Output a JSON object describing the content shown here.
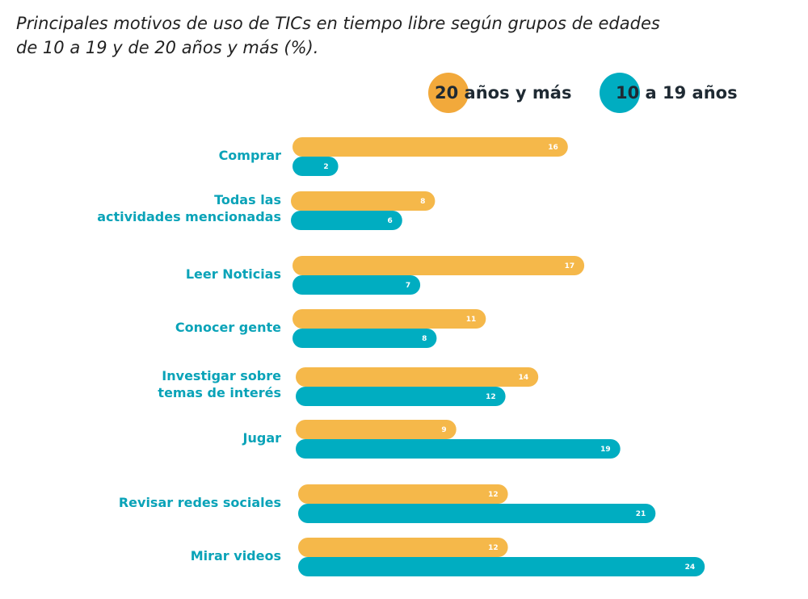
{
  "title": {
    "line1": "Principales motivos de uso de TICs en tiempo libre según grupos de edades",
    "line2": "de 10 a 19 y de 20 años y más (%)."
  },
  "legend": {
    "older": "20 años y más",
    "young": "10 a 19 años"
  },
  "colors": {
    "older": "#f5b84a",
    "young": "#00adc1"
  },
  "chart_data": {
    "type": "bar",
    "orientation": "horizontal",
    "title": "Principales motivos de uso de TICs en tiempo libre según grupos de edades de 10 a 19 y de 20 años y más (%).",
    "categories": [
      [
        "Comprar"
      ],
      [
        "Todas las",
        "actividades mencionadas"
      ],
      [
        "Leer Noticias"
      ],
      [
        "Conocer gente"
      ],
      [
        "Investigar sobre",
        "temas de interés"
      ],
      [
        "Jugar"
      ],
      [
        "Revisar redes sociales"
      ],
      [
        "Mirar videos"
      ]
    ],
    "series": [
      {
        "name": "20 años y más",
        "color": "#f5b84a",
        "values": [
          16,
          8,
          17,
          11,
          14,
          9,
          12,
          12
        ]
      },
      {
        "name": "10 a 19 años",
        "color": "#00adc1",
        "values": [
          2,
          6,
          7,
          8,
          12,
          19,
          21,
          24
        ]
      }
    ],
    "legend": "top-right",
    "grid": false
  }
}
